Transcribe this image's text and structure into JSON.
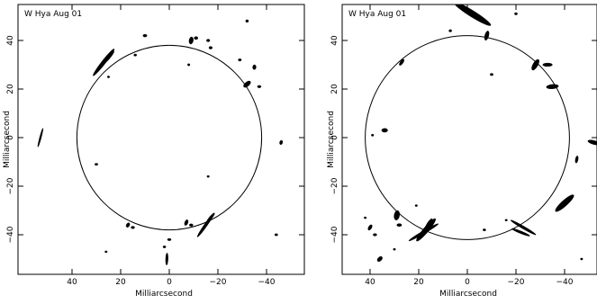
{
  "chart_data": [
    {
      "type": "scatter",
      "title": "W Hya Aug 01",
      "xlabel": "Milliarcsecond",
      "ylabel": "Milliarcsecond",
      "xlim": [
        55,
        -55
      ],
      "ylim": [
        -55,
        55
      ],
      "x_ticks": [
        40,
        20,
        0,
        -20,
        -40
      ],
      "y_ticks": [
        -40,
        -20,
        0,
        20,
        40
      ],
      "x_tick_labels": [
        "40",
        "20",
        "0",
        "−20",
        "−40"
      ],
      "y_tick_labels": [
        "−40",
        "−20",
        "0",
        "20",
        "40"
      ],
      "circle": {
        "center": [
          0,
          0
        ],
        "radius": 38
      },
      "color": "#000000",
      "spots": [
        {
          "x": 27,
          "y": 31,
          "len": 14,
          "w": 1.6,
          "angle": 52
        },
        {
          "x": 25,
          "y": 33,
          "len": 7,
          "w": 1.3,
          "angle": 50
        },
        {
          "x": 10,
          "y": 42,
          "len": 1.6,
          "w": 1.1,
          "angle": 0
        },
        {
          "x": -9,
          "y": 40,
          "len": 3,
          "w": 1.7,
          "angle": 80
        },
        {
          "x": -11,
          "y": 41,
          "len": 1.5,
          "w": 1.2,
          "angle": 0
        },
        {
          "x": -16,
          "y": 40,
          "len": 1.4,
          "w": 1.1,
          "angle": 0
        },
        {
          "x": -17,
          "y": 37,
          "len": 1.4,
          "w": 1.1,
          "angle": 0
        },
        {
          "x": -32,
          "y": 48,
          "len": 1.2,
          "w": 1.1,
          "angle": 0
        },
        {
          "x": -29,
          "y": 32,
          "len": 1.3,
          "w": 1.0,
          "angle": 0
        },
        {
          "x": -35,
          "y": 29,
          "len": 2,
          "w": 1.4,
          "angle": 85
        },
        {
          "x": -32,
          "y": 22,
          "len": 3.5,
          "w": 1.8,
          "angle": 40
        },
        {
          "x": -37,
          "y": 21,
          "len": 1.5,
          "w": 1.0,
          "angle": 0
        },
        {
          "x": 14,
          "y": 34,
          "len": 1.2,
          "w": 0.9,
          "angle": 0
        },
        {
          "x": -8,
          "y": 30,
          "len": 1.0,
          "w": 0.9,
          "angle": 0
        },
        {
          "x": -46,
          "y": -2,
          "len": 1.8,
          "w": 1.2,
          "angle": 75
        },
        {
          "x": -15,
          "y": -36,
          "len": 12,
          "w": 1.2,
          "angle": 55
        },
        {
          "x": -17,
          "y": -33,
          "len": 5,
          "w": 1.1,
          "angle": 50
        },
        {
          "x": -7,
          "y": -35,
          "len": 2.5,
          "w": 1.3,
          "angle": 70
        },
        {
          "x": -9,
          "y": -36,
          "len": 1.5,
          "w": 1.0,
          "angle": 0
        },
        {
          "x": 17,
          "y": -36,
          "len": 2,
          "w": 1.3,
          "angle": 60
        },
        {
          "x": 15,
          "y": -37,
          "len": 1.5,
          "w": 1.0,
          "angle": 0
        },
        {
          "x": 0,
          "y": -42,
          "len": 1.5,
          "w": 0.9,
          "angle": 0
        },
        {
          "x": 1,
          "y": -50,
          "len": 5,
          "w": 1.0,
          "angle": 88
        },
        {
          "x": 2,
          "y": -45,
          "len": 1.2,
          "w": 0.9,
          "angle": 0
        },
        {
          "x": 30,
          "y": -11,
          "len": 1.3,
          "w": 0.9,
          "angle": 0
        },
        {
          "x": -16,
          "y": -16,
          "len": 1.0,
          "w": 0.8,
          "angle": 0
        },
        {
          "x": -44,
          "y": -40,
          "len": 1.3,
          "w": 0.9,
          "angle": 0
        },
        {
          "x": 26,
          "y": -47,
          "len": 1.0,
          "w": 0.8,
          "angle": 0
        },
        {
          "x": 53,
          "y": 0,
          "len": 8,
          "w": 0.7,
          "angle": 75
        },
        {
          "x": 25,
          "y": 25,
          "len": 1.0,
          "w": 0.8,
          "angle": 0
        }
      ]
    },
    {
      "type": "scatter",
      "title": "W Hya Aug 01",
      "xlabel": "Milliarcsecond",
      "ylabel": "Milliarcsecond",
      "xlim": [
        55,
        -55
      ],
      "ylim": [
        -55,
        55
      ],
      "x_ticks": [
        40,
        20,
        0,
        -20,
        -40
      ],
      "y_ticks": [
        -40,
        -20,
        0,
        20,
        40
      ],
      "x_tick_labels": [
        "40",
        "20",
        "0",
        "−20",
        "−40"
      ],
      "y_tick_labels": [
        "−40",
        "−20",
        "0",
        "20",
        "40"
      ],
      "circle": {
        "center": [
          0,
          0
        ],
        "radius": 42
      },
      "color": "#000000",
      "spots": [
        {
          "x": -2,
          "y": 51,
          "len": 18,
          "w": 2.6,
          "angle": -32
        },
        {
          "x": -8,
          "y": 42,
          "len": 4,
          "w": 1.6,
          "angle": 75
        },
        {
          "x": 7,
          "y": 44,
          "len": 1.2,
          "w": 1.0,
          "angle": 0
        },
        {
          "x": -20,
          "y": 51,
          "len": 1.2,
          "w": 1.0,
          "angle": 0
        },
        {
          "x": 27,
          "y": 31,
          "len": 3,
          "w": 1.2,
          "angle": 55
        },
        {
          "x": -28,
          "y": 30,
          "len": 5,
          "w": 2.0,
          "angle": 60
        },
        {
          "x": -33,
          "y": 30,
          "len": 4,
          "w": 1.4,
          "angle": 0
        },
        {
          "x": -35,
          "y": 21,
          "len": 5,
          "w": 1.8,
          "angle": 5
        },
        {
          "x": -10,
          "y": 26,
          "len": 1.3,
          "w": 1.0,
          "angle": 0
        },
        {
          "x": 34,
          "y": 3,
          "len": 2.5,
          "w": 1.6,
          "angle": 0
        },
        {
          "x": 39,
          "y": 1,
          "len": 1.0,
          "w": 0.9,
          "angle": 0
        },
        {
          "x": -52,
          "y": -2,
          "len": 5,
          "w": 1.6,
          "angle": -15
        },
        {
          "x": -45,
          "y": -9,
          "len": 3,
          "w": 1.1,
          "angle": 80
        },
        {
          "x": -40,
          "y": -27,
          "len": 10,
          "w": 2.4,
          "angle": 42
        },
        {
          "x": 17,
          "y": -38,
          "len": 12,
          "w": 2.2,
          "angle": 50
        },
        {
          "x": 18,
          "y": -39,
          "len": 14,
          "w": 1.2,
          "angle": 30
        },
        {
          "x": 16,
          "y": -36,
          "len": 6,
          "w": 1.6,
          "angle": 60
        },
        {
          "x": -23,
          "y": -37,
          "len": 12,
          "w": 1.1,
          "angle": -30
        },
        {
          "x": -22,
          "y": -39,
          "len": 8,
          "w": 1.0,
          "angle": -22
        },
        {
          "x": 29,
          "y": -32,
          "len": 4,
          "w": 2.2,
          "angle": 80
        },
        {
          "x": 28,
          "y": -36,
          "len": 2,
          "w": 1.2,
          "angle": 0
        },
        {
          "x": 40,
          "y": -37,
          "len": 2.5,
          "w": 1.3,
          "angle": 60
        },
        {
          "x": 38,
          "y": -40,
          "len": 1.5,
          "w": 1.0,
          "angle": 0
        },
        {
          "x": 36,
          "y": -50,
          "len": 2.5,
          "w": 1.6,
          "angle": 45
        },
        {
          "x": 42,
          "y": -33,
          "len": 1.0,
          "w": 0.8,
          "angle": 0
        },
        {
          "x": 30,
          "y": -46,
          "len": 1.0,
          "w": 0.8,
          "angle": 0
        },
        {
          "x": -7,
          "y": -38,
          "len": 1.2,
          "w": 0.9,
          "angle": 0
        },
        {
          "x": -16,
          "y": -34,
          "len": 1.0,
          "w": 0.8,
          "angle": 0
        },
        {
          "x": 21,
          "y": -28,
          "len": 1.0,
          "w": 0.8,
          "angle": 0
        },
        {
          "x": -47,
          "y": -50,
          "len": 1.0,
          "w": 0.8,
          "angle": 0
        }
      ]
    }
  ]
}
